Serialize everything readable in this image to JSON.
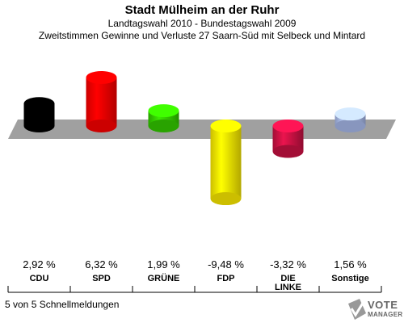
{
  "header": {
    "title": "Stadt Mülheim an der Ruhr",
    "subtitle_1": "Landtagswahl 2010 - Bundestagswahl 2009",
    "subtitle_2": "Zweitstimmen Gewinne und Verluste 27 Saarn-Süd mit Selbeck und Mintard"
  },
  "chart_data": {
    "type": "bar",
    "title": "Stadt Mülheim an der Ruhr",
    "subtitle": "Landtagswahl 2010 - Bundestagswahl 2009 / Zweitstimmen Gewinne und Verluste 27 Saarn-Süd mit Selbeck und Mintard",
    "categories": [
      "CDU",
      "SPD",
      "GRÜNE",
      "FDP",
      "DIE LINKE",
      "Sonstige"
    ],
    "values": [
      2.92,
      6.32,
      1.99,
      -9.48,
      -3.32,
      1.56
    ],
    "value_labels": [
      "2,92 %",
      "6,32 %",
      "1,99 %",
      "-9,48 %",
      "-3,32 %",
      "1,56 %"
    ],
    "colors": [
      "#000000",
      "#ff0000",
      "#33cc00",
      "#ffee00",
      "#cc1144",
      "#aabbee"
    ],
    "unit": "%",
    "grid": false
  },
  "footer": {
    "text": "5 von 5 Schnellmeldungen"
  },
  "logo": {
    "line1": "VOTE",
    "line2": "MANAGER"
  }
}
